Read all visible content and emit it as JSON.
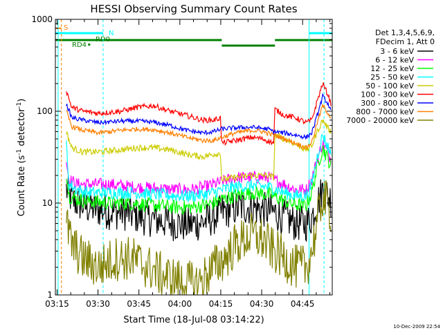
{
  "chart_data": {
    "type": "line",
    "title": "HESSI Observing Summary Count Rates",
    "xlabel": "Start Time (18-Jul-08 03:14:22)",
    "ylabel_main": "Count Rate (s",
    "ylabel_sup1": "-1",
    "ylabel_mid": " detector",
    "ylabel_sup2": "-1",
    "ylabel_end": ")",
    "x_ticks": [
      "03:15",
      "03:30",
      "03:45",
      "04:00",
      "04:15",
      "04:30",
      "04:45"
    ],
    "x_tick_minutes": [
      0.63,
      15.63,
      30.63,
      45.63,
      60.63,
      75.63,
      90.63
    ],
    "xlim_minutes": [
      0,
      101.5
    ],
    "y_scale": "log",
    "ylim": [
      1,
      1000
    ],
    "y_ticks": [
      "1",
      "10",
      "100",
      "1000"
    ],
    "legend_title_1": "Det 1,3,4,5,6,9,",
    "legend_title_2": "FDecim 1, Att 0",
    "series": [
      {
        "name": "3 - 6 keV",
        "color": "#000000",
        "points": [
          [
            4,
            14
          ],
          [
            6,
            11
          ],
          [
            8,
            10
          ],
          [
            12,
            9
          ],
          [
            16,
            8.5
          ],
          [
            20,
            8
          ],
          [
            24,
            8
          ],
          [
            28,
            7.5
          ],
          [
            32,
            7
          ],
          [
            38,
            6.5
          ],
          [
            44,
            6
          ],
          [
            48,
            5.8
          ],
          [
            52,
            6
          ],
          [
            56,
            6.5
          ],
          [
            58,
            7
          ],
          [
            61,
            8
          ],
          [
            64,
            8.5
          ],
          [
            68,
            9
          ],
          [
            72,
            9
          ],
          [
            76,
            8.5
          ],
          [
            80,
            8
          ],
          [
            84,
            7
          ],
          [
            88,
            6
          ],
          [
            92,
            6
          ],
          [
            94,
            7
          ],
          [
            96,
            10
          ],
          [
            98,
            14
          ],
          [
            100,
            12
          ],
          [
            101,
            11
          ]
        ],
        "noise": 0.2
      },
      {
        "name": "6 - 12 keV",
        "color": "#ff00ff",
        "points": [
          [
            4,
            30
          ],
          [
            5,
            18
          ],
          [
            8,
            16
          ],
          [
            12,
            16
          ],
          [
            20,
            16
          ],
          [
            28,
            15
          ],
          [
            36,
            14.5
          ],
          [
            44,
            14
          ],
          [
            50,
            14
          ],
          [
            55,
            15
          ],
          [
            58,
            16
          ],
          [
            61,
            17
          ],
          [
            66,
            19
          ],
          [
            72,
            19
          ],
          [
            78,
            19
          ],
          [
            80,
            18
          ],
          [
            84,
            16
          ],
          [
            88,
            14
          ],
          [
            92,
            14
          ],
          [
            94,
            18
          ],
          [
            96,
            30
          ],
          [
            98,
            45
          ],
          [
            100,
            35
          ],
          [
            101,
            30
          ]
        ],
        "noise": 0.07
      },
      {
        "name": "12 - 25 keV",
        "color": "#00ff00",
        "points": [
          [
            4,
            22
          ],
          [
            5,
            12
          ],
          [
            8,
            11
          ],
          [
            12,
            10.5
          ],
          [
            20,
            10
          ],
          [
            28,
            10
          ],
          [
            36,
            9.5
          ],
          [
            44,
            9
          ],
          [
            50,
            9
          ],
          [
            55,
            9.5
          ],
          [
            58,
            10
          ],
          [
            61,
            11
          ],
          [
            66,
            12
          ],
          [
            72,
            13
          ],
          [
            78,
            12.5
          ],
          [
            80,
            12
          ],
          [
            84,
            10.5
          ],
          [
            88,
            9.5
          ],
          [
            92,
            9.5
          ],
          [
            94,
            13
          ],
          [
            96,
            25
          ],
          [
            98,
            40
          ],
          [
            100,
            30
          ],
          [
            101,
            25
          ]
        ],
        "noise": 0.08
      },
      {
        "name": "25 - 50 keV",
        "color": "#00ffff",
        "points": [
          [
            4,
            45
          ],
          [
            5,
            16
          ],
          [
            8,
            14
          ],
          [
            12,
            13
          ],
          [
            20,
            13
          ],
          [
            28,
            13
          ],
          [
            36,
            12.5
          ],
          [
            44,
            12
          ],
          [
            50,
            12
          ],
          [
            55,
            12.5
          ],
          [
            58,
            13
          ],
          [
            61,
            14
          ],
          [
            66,
            15
          ],
          [
            72,
            15.5
          ],
          [
            78,
            15
          ],
          [
            80,
            14.5
          ],
          [
            84,
            13
          ],
          [
            88,
            12
          ],
          [
            92,
            12
          ],
          [
            94,
            16
          ],
          [
            96,
            32
          ],
          [
            98,
            55
          ],
          [
            100,
            40
          ],
          [
            101,
            35
          ]
        ],
        "noise": 0.07
      },
      {
        "name": "50 - 100 keV",
        "color": "#cccc00",
        "points": [
          [
            4,
            60
          ],
          [
            6,
            40
          ],
          [
            10,
            36
          ],
          [
            16,
            36
          ],
          [
            24,
            38
          ],
          [
            30,
            40
          ],
          [
            36,
            40
          ],
          [
            42,
            38
          ],
          [
            48,
            34
          ],
          [
            54,
            32
          ],
          [
            58,
            34
          ],
          [
            60.5,
            35
          ],
          [
            61,
            18
          ],
          [
            66,
            19
          ],
          [
            72,
            20
          ],
          [
            78,
            20
          ],
          [
            80,
            19
          ],
          [
            80.5,
            55
          ],
          [
            84,
            50
          ],
          [
            88,
            44
          ],
          [
            92,
            38
          ],
          [
            94,
            42
          ],
          [
            96,
            60
          ],
          [
            98,
            80
          ],
          [
            100,
            65
          ],
          [
            101,
            60
          ]
        ],
        "noise": 0.035
      },
      {
        "name": "100 - 300 keV",
        "color": "#ff0000",
        "points": [
          [
            4,
            170
          ],
          [
            6,
            110
          ],
          [
            10,
            100
          ],
          [
            16,
            95
          ],
          [
            24,
            100
          ],
          [
            30,
            110
          ],
          [
            36,
            115
          ],
          [
            42,
            100
          ],
          [
            48,
            90
          ],
          [
            54,
            80
          ],
          [
            58,
            80
          ],
          [
            60.5,
            85
          ],
          [
            61,
            45
          ],
          [
            66,
            48
          ],
          [
            72,
            52
          ],
          [
            76,
            50
          ],
          [
            80,
            45
          ],
          [
            80.5,
            105
          ],
          [
            84,
            90
          ],
          [
            88,
            85
          ],
          [
            92,
            75
          ],
          [
            94,
            80
          ],
          [
            96,
            130
          ],
          [
            98,
            200
          ],
          [
            100,
            150
          ],
          [
            101,
            120
          ]
        ],
        "noise": 0.03
      },
      {
        "name": "300 - 800 keV",
        "color": "#0000ff",
        "points": [
          [
            4,
            120
          ],
          [
            6,
            85
          ],
          [
            10,
            80
          ],
          [
            16,
            75
          ],
          [
            24,
            78
          ],
          [
            30,
            78
          ],
          [
            36,
            76
          ],
          [
            42,
            70
          ],
          [
            48,
            62
          ],
          [
            54,
            58
          ],
          [
            58,
            60
          ],
          [
            61,
            64
          ],
          [
            66,
            66
          ],
          [
            72,
            67
          ],
          [
            78,
            64
          ],
          [
            80,
            60
          ],
          [
            84,
            58
          ],
          [
            88,
            55
          ],
          [
            92,
            52
          ],
          [
            94,
            58
          ],
          [
            96,
            90
          ],
          [
            98,
            145
          ],
          [
            100,
            120
          ],
          [
            101,
            100
          ]
        ],
        "noise": 0.025
      },
      {
        "name": "800 - 7000 keV",
        "color": "#ff7f00",
        "points": [
          [
            4,
            100
          ],
          [
            6,
            68
          ],
          [
            10,
            62
          ],
          [
            16,
            58
          ],
          [
            24,
            62
          ],
          [
            30,
            64
          ],
          [
            36,
            63
          ],
          [
            42,
            58
          ],
          [
            48,
            52
          ],
          [
            54,
            48
          ],
          [
            58,
            48
          ],
          [
            61,
            52
          ],
          [
            66,
            58
          ],
          [
            72,
            62
          ],
          [
            76,
            60
          ],
          [
            80,
            55
          ],
          [
            84,
            50
          ],
          [
            88,
            45
          ],
          [
            92,
            40
          ],
          [
            94,
            46
          ],
          [
            96,
            75
          ],
          [
            98,
            115
          ],
          [
            100,
            95
          ],
          [
            101,
            85
          ]
        ],
        "noise": 0.025
      },
      {
        "name": "7000 - 20000 keV",
        "color": "#808000",
        "points": [
          [
            4,
            6
          ],
          [
            6,
            3.5
          ],
          [
            10,
            2.5
          ],
          [
            16,
            2
          ],
          [
            22,
            2.5
          ],
          [
            28,
            2.5
          ],
          [
            34,
            2
          ],
          [
            40,
            1.6
          ],
          [
            46,
            1.4
          ],
          [
            52,
            1.3
          ],
          [
            58,
            2
          ],
          [
            62,
            2.5
          ],
          [
            66,
            3.5
          ],
          [
            72,
            4.5
          ],
          [
            76,
            4
          ],
          [
            80,
            3
          ],
          [
            84,
            2.5
          ],
          [
            88,
            2
          ],
          [
            92,
            2
          ],
          [
            94,
            3
          ],
          [
            96,
            6
          ],
          [
            98,
            12
          ],
          [
            100,
            9
          ],
          [
            101,
            8
          ]
        ],
        "noise": 0.25
      }
    ],
    "flags": {
      "saa_label": "S",
      "night_label": "N",
      "rd0_label": "RD0",
      "rd4_label": "RD4",
      "bar_top_color": "#00ffff",
      "bar_bottom_color": "#008000",
      "saa_color": "#ff7f00"
    },
    "vlines_cyan_minutes": [
      1.0,
      93.0
    ],
    "vlines_cyan_dashed_minutes": [
      17.5,
      98.5
    ],
    "vline_orange_dashed_minute": 2.2
  },
  "timestamp": "10-Dec-2009 22:54"
}
